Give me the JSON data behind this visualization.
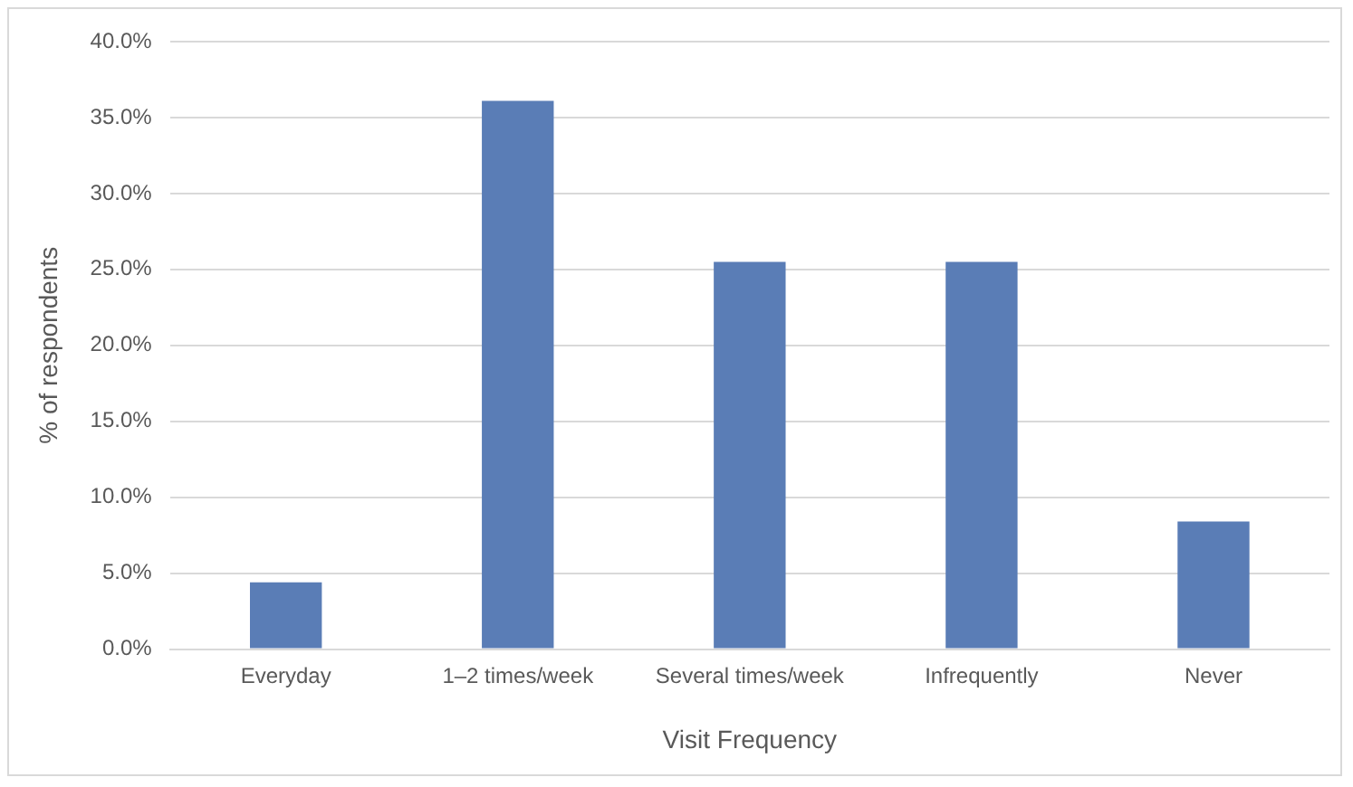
{
  "chart_data": {
    "type": "bar",
    "xlabel": "Visit Frequency",
    "ylabel": "% of respondents",
    "categories": [
      "Everyday",
      "1–2 times/week",
      "Several times/week",
      "Infrequently",
      "Never"
    ],
    "values": [
      4.4,
      36.1,
      25.5,
      25.5,
      8.4
    ],
    "color": "#5a7db6",
    "ylim": [
      0,
      40
    ],
    "yticks": [
      {
        "value": 0,
        "label": "0.0%"
      },
      {
        "value": 5,
        "label": "5.0%"
      },
      {
        "value": 10,
        "label": "10.0%"
      },
      {
        "value": 15,
        "label": "15.0%"
      },
      {
        "value": 20,
        "label": "20.0%"
      },
      {
        "value": 25,
        "label": "25.0%"
      },
      {
        "value": 30,
        "label": "30.0%"
      },
      {
        "value": 35,
        "label": "35.0%"
      },
      {
        "value": 40,
        "label": "40.0%"
      }
    ],
    "grid": "y",
    "legend": false
  }
}
